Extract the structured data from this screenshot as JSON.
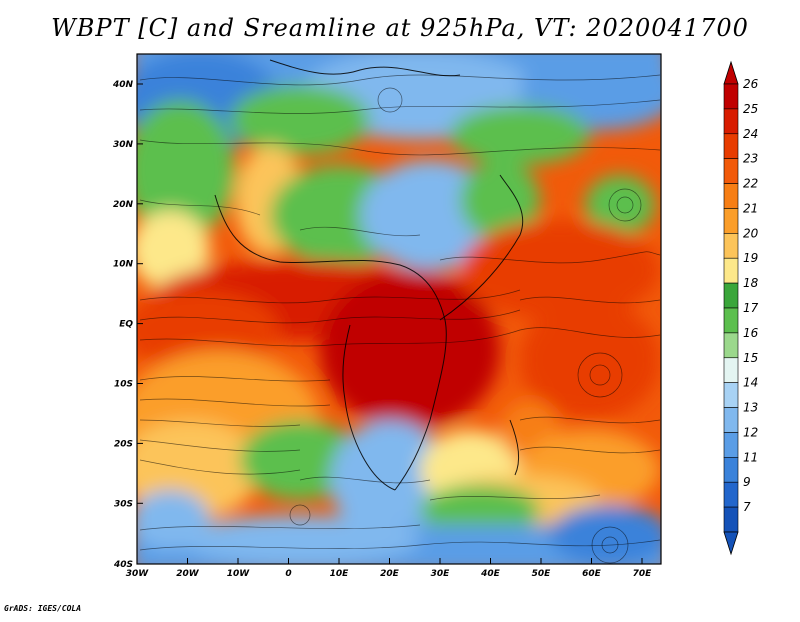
{
  "title": "WBPT [C] and Sreamline at 925hPa, VT: 2020041700",
  "credit": "GrADS: IGES/COLA",
  "lat_ticks": [
    "40N",
    "30N",
    "20N",
    "10N",
    "EQ",
    "10S",
    "20S",
    "30S",
    "40S"
  ],
  "lon_ticks": [
    "30W",
    "20W",
    "10W",
    "0",
    "10E",
    "20E",
    "30E",
    "40E",
    "50E",
    "60E",
    "70E"
  ],
  "colorbar": {
    "labels": [
      "26",
      "25",
      "24",
      "23",
      "22",
      "21",
      "20",
      "19",
      "18",
      "17",
      "16",
      "15",
      "14",
      "13",
      "12",
      "11",
      "9",
      "7"
    ],
    "colors": [
      "#c00000",
      "#d81c00",
      "#e83c00",
      "#f25a0a",
      "#f77e14",
      "#fb9e2a",
      "#fcc45a",
      "#fde88a",
      "#3aa63a",
      "#5cbf4e",
      "#9bd88c",
      "#e4f5f2",
      "#a8d2f4",
      "#80b8ee",
      "#5a9de6",
      "#3a82da",
      "#2266cc",
      "#1452b8"
    ]
  }
}
